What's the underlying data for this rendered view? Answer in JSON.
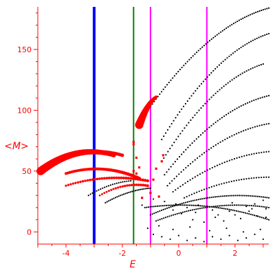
{
  "chart_data": {
    "type": "scatter",
    "title": "",
    "xlabel": "E",
    "ylabel": "<M>",
    "xlim": [
      -5.0,
      3.2
    ],
    "ylim": [
      -10,
      185
    ],
    "grid": false,
    "x_ticks": [
      -4,
      -2,
      0,
      2
    ],
    "x_tick_labels": [
      "-4",
      "-2",
      "0",
      "2"
    ],
    "y_ticks": [
      0,
      50,
      100,
      150
    ],
    "y_tick_labels": [
      "0",
      "50",
      "100",
      "150"
    ],
    "colors": {
      "axis": "#ff0000",
      "black_points": "#000000",
      "red_points": "#ff0000",
      "blue_line": "#0000ff",
      "green_line": "#008000",
      "magenta_line": "#ff00ff"
    },
    "vertical_lines": [
      {
        "x": -3.0,
        "color": "#0000ff",
        "role": "thick"
      },
      {
        "x": -1.6,
        "color": "#008000",
        "role": "medium"
      },
      {
        "x": -1.0,
        "color": "#ff00ff",
        "role": "medium"
      },
      {
        "x": 1.0,
        "color": "#ff00ff",
        "role": "medium"
      }
    ],
    "black_branches": [
      {
        "x": [
          -1.0,
          3.2
        ],
        "y": [
          103,
          184
        ],
        "curve": 0.15,
        "n": 65
      },
      {
        "x": [
          -0.6,
          3.2
        ],
        "y": [
          76,
          163
        ],
        "curve": 0.15,
        "n": 55
      },
      {
        "x": [
          -0.6,
          3.0
        ],
        "y": [
          58,
          138
        ],
        "curve": 0.15,
        "n": 50
      },
      {
        "x": [
          -0.5,
          3.2
        ],
        "y": [
          47,
          112
        ],
        "curve": 0.15,
        "n": 50
      },
      {
        "x": [
          -0.4,
          3.2
        ],
        "y": [
          38,
          89
        ],
        "curve": 0.15,
        "n": 45
      },
      {
        "x": [
          -0.2,
          3.2
        ],
        "y": [
          33,
          66
        ],
        "curve": 0.15,
        "n": 40
      },
      {
        "x": [
          0.2,
          3.2
        ],
        "y": [
          28,
          45
        ],
        "curve": 0.15,
        "n": 35
      },
      {
        "x": [
          -2.6,
          -1.0
        ],
        "y": [
          24,
          36
        ],
        "curve": 0.1,
        "n": 28
      },
      {
        "x": [
          -3.2,
          -1.7
        ],
        "y": [
          30,
          42
        ],
        "curve": 0.1,
        "n": 22
      },
      {
        "x": [
          -1.2,
          3.2
        ],
        "y": [
          20,
          10
        ],
        "curve": 0.3,
        "n": 70
      },
      {
        "x": [
          -1.0,
          3.2
        ],
        "y": [
          14,
          28
        ],
        "curve": 0.3,
        "n": 65
      },
      {
        "x": [
          -0.8,
          3.2
        ],
        "y": [
          9,
          20
        ],
        "curve": 0.3,
        "n": 60
      }
    ],
    "black_scatter": [
      [
        -0.9,
        -2
      ],
      [
        -0.6,
        -4
      ],
      [
        -0.3,
        -6
      ],
      [
        0.0,
        -3
      ],
      [
        0.3,
        -7
      ],
      [
        0.6,
        -5
      ],
      [
        0.9,
        -8
      ],
      [
        1.2,
        -4
      ],
      [
        1.5,
        -6
      ],
      [
        1.8,
        -3
      ],
      [
        2.1,
        -7
      ],
      [
        2.4,
        -5
      ],
      [
        2.7,
        -2
      ],
      [
        3.0,
        -6
      ],
      [
        -1.1,
        3
      ],
      [
        -0.7,
        5
      ],
      [
        -0.2,
        2
      ],
      [
        0.4,
        4
      ],
      [
        1.1,
        1
      ],
      [
        1.7,
        3
      ],
      [
        2.3,
        0
      ],
      [
        2.9,
        2
      ],
      [
        0.5,
        10
      ],
      [
        0.9,
        8
      ],
      [
        1.3,
        12
      ],
      [
        1.6,
        9
      ],
      [
        2.0,
        14
      ],
      [
        2.2,
        11
      ],
      [
        2.5,
        17
      ],
      [
        2.8,
        13
      ],
      [
        3.1,
        19
      ],
      [
        -1.3,
        22
      ],
      [
        -0.9,
        27
      ],
      [
        -0.5,
        25
      ],
      [
        -0.1,
        23
      ],
      [
        0.3,
        20
      ],
      [
        0.7,
        22
      ],
      [
        1.2,
        18
      ],
      [
        1.9,
        24
      ],
      [
        2.4,
        21
      ],
      [
        2.7,
        23
      ],
      [
        3.0,
        26
      ],
      [
        -0.2,
        18
      ],
      [
        0.1,
        15
      ],
      [
        0.6,
        16
      ],
      [
        1.4,
        14
      ],
      [
        1.8,
        17
      ],
      [
        2.6,
        19
      ],
      [
        3.1,
        12
      ]
    ],
    "red_branches": [
      {
        "x": [
          -4.9,
          -2.3
        ],
        "y": [
          50,
          63
        ],
        "curve": 0.35,
        "n": 60,
        "r": [
          6,
          3
        ]
      },
      {
        "x": [
          -4.6,
          -2.0
        ],
        "y": [
          54,
          63
        ],
        "curve": 0.35,
        "n": 40,
        "r": [
          3,
          2.5
        ]
      },
      {
        "x": [
          -4.0,
          -1.4
        ],
        "y": [
          48,
          44
        ],
        "curve": 0.4,
        "n": 40,
        "r": [
          2,
          2.5
        ]
      },
      {
        "x": [
          -4.0,
          -1.1
        ],
        "y": [
          38,
          42
        ],
        "curve": 0.3,
        "n": 35,
        "r": [
          1.6,
          2.2
        ]
      },
      {
        "x": [
          -2.8,
          -1.1
        ],
        "y": [
          30,
          38
        ],
        "curve": 0.2,
        "n": 22,
        "r": [
          1.4,
          2
        ]
      },
      {
        "x": [
          -1.4,
          -0.8
        ],
        "y": [
          88,
          111
        ],
        "curve": 0.1,
        "n": 22,
        "r": [
          6,
          2
        ]
      }
    ],
    "red_scatter": [
      [
        -1.6,
        74
      ],
      [
        -1.6,
        72
      ],
      [
        -1.5,
        61
      ],
      [
        -1.4,
        53
      ],
      [
        -1.6,
        50
      ],
      [
        -1.5,
        48
      ],
      [
        -1.6,
        46
      ],
      [
        -0.8,
        52
      ],
      [
        -0.6,
        58
      ],
      [
        -0.55,
        63
      ],
      [
        -0.9,
        43
      ],
      [
        -1.3,
        28
      ],
      [
        -1.0,
        32
      ],
      [
        -0.7,
        29
      ]
    ]
  }
}
